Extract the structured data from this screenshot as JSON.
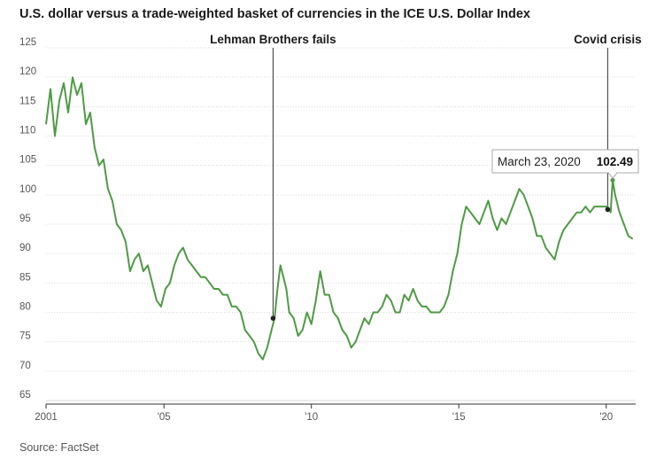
{
  "chart_data": {
    "type": "line",
    "title": "U.S. dollar versus a trade-weighted basket of currencies in the ICE U.S. Dollar Index",
    "source": "Source: FactSet",
    "xlabel": "",
    "ylabel": "",
    "xlim": [
      2001,
      2021
    ],
    "ylim": [
      65,
      125
    ],
    "y_ticks": [
      65,
      70,
      75,
      80,
      85,
      90,
      95,
      100,
      105,
      110,
      115,
      120,
      125
    ],
    "x_ticks": [
      {
        "value": 2001,
        "label": "2001"
      },
      {
        "value": 2005,
        "label": "'05"
      },
      {
        "value": 2010,
        "label": "'10"
      },
      {
        "value": 2015,
        "label": "'15"
      },
      {
        "value": 2020,
        "label": "'20"
      }
    ],
    "grid": "horizontal",
    "line_color": "#4f9a45",
    "series": [
      {
        "x": [
          2001.0,
          2001.15,
          2001.3,
          2001.45,
          2001.6,
          2001.75,
          2001.9,
          2002.05,
          2002.2,
          2002.35,
          2002.5,
          2002.65,
          2002.8,
          2002.95,
          2003.1,
          2003.25,
          2003.4,
          2003.55,
          2003.7,
          2003.85,
          2004.0,
          2004.15,
          2004.3,
          2004.45,
          2004.6,
          2004.75,
          2004.9,
          2005.05,
          2005.2,
          2005.35,
          2005.5,
          2005.65,
          2005.8,
          2005.95,
          2006.1,
          2006.25,
          2006.4,
          2006.55,
          2006.7,
          2006.85,
          2007.0,
          2007.15,
          2007.3,
          2007.45,
          2007.6,
          2007.75,
          2007.9,
          2008.05,
          2008.2,
          2008.35,
          2008.5,
          2008.65,
          2008.75,
          2008.85,
          2008.95,
          2009.05,
          2009.15,
          2009.25,
          2009.4,
          2009.55,
          2009.7,
          2009.85,
          2010.0,
          2010.15,
          2010.3,
          2010.45,
          2010.6,
          2010.75,
          2010.9,
          2011.05,
          2011.2,
          2011.35,
          2011.5,
          2011.65,
          2011.8,
          2011.95,
          2012.1,
          2012.25,
          2012.4,
          2012.55,
          2012.7,
          2012.85,
          2013.0,
          2013.15,
          2013.3,
          2013.45,
          2013.6,
          2013.75,
          2013.9,
          2014.05,
          2014.2,
          2014.35,
          2014.5,
          2014.65,
          2014.8,
          2014.95,
          2015.1,
          2015.25,
          2015.4,
          2015.55,
          2015.7,
          2015.85,
          2016.0,
          2016.15,
          2016.3,
          2016.45,
          2016.6,
          2016.75,
          2016.9,
          2017.05,
          2017.2,
          2017.35,
          2017.5,
          2017.65,
          2017.8,
          2017.95,
          2018.1,
          2018.25,
          2018.4,
          2018.55,
          2018.7,
          2018.85,
          2019.0,
          2019.15,
          2019.3,
          2019.45,
          2019.6,
          2019.75,
          2019.9,
          2020.05,
          2020.15,
          2020.22,
          2020.3,
          2020.45,
          2020.6,
          2020.75,
          2020.9
        ],
        "y": [
          112,
          118,
          110,
          116,
          119,
          114,
          120,
          117,
          119,
          112,
          114,
          108,
          105,
          106,
          101,
          99,
          95,
          94,
          92,
          87,
          89,
          90,
          87,
          88,
          85,
          82,
          81,
          84,
          85,
          88,
          90,
          91,
          89,
          88,
          87,
          86,
          86,
          85,
          84,
          84,
          83,
          83,
          81,
          81,
          80,
          77,
          76,
          75,
          73,
          72,
          74,
          77,
          79,
          84,
          88,
          86,
          84,
          80,
          79,
          76,
          77,
          80,
          78,
          82,
          87,
          83,
          83,
          80,
          79,
          77,
          76,
          74,
          75,
          77,
          79,
          78,
          80,
          80,
          81,
          83,
          82,
          80,
          80,
          83,
          82,
          84,
          82,
          81,
          81,
          80,
          80,
          80,
          81,
          83,
          87,
          90,
          95,
          98,
          97,
          96,
          95,
          97,
          99,
          96,
          94,
          96,
          95,
          97,
          99,
          101,
          100,
          98,
          96,
          93,
          93,
          91,
          90,
          89,
          92,
          94,
          95,
          96,
          97,
          97,
          98,
          97,
          98,
          98,
          98,
          98,
          97,
          102.49,
          100,
          97,
          95,
          93,
          92.5
        ]
      }
    ],
    "annotations": [
      {
        "label": "Lehman Brothers fails",
        "x": 2008.7,
        "y": 79
      },
      {
        "label": "Covid crisis",
        "x": 2020.05,
        "y": 97.5
      }
    ],
    "tooltip": {
      "date": "March 23, 2020",
      "value": "102.49",
      "x": 2020.22,
      "y": 102.49
    }
  }
}
